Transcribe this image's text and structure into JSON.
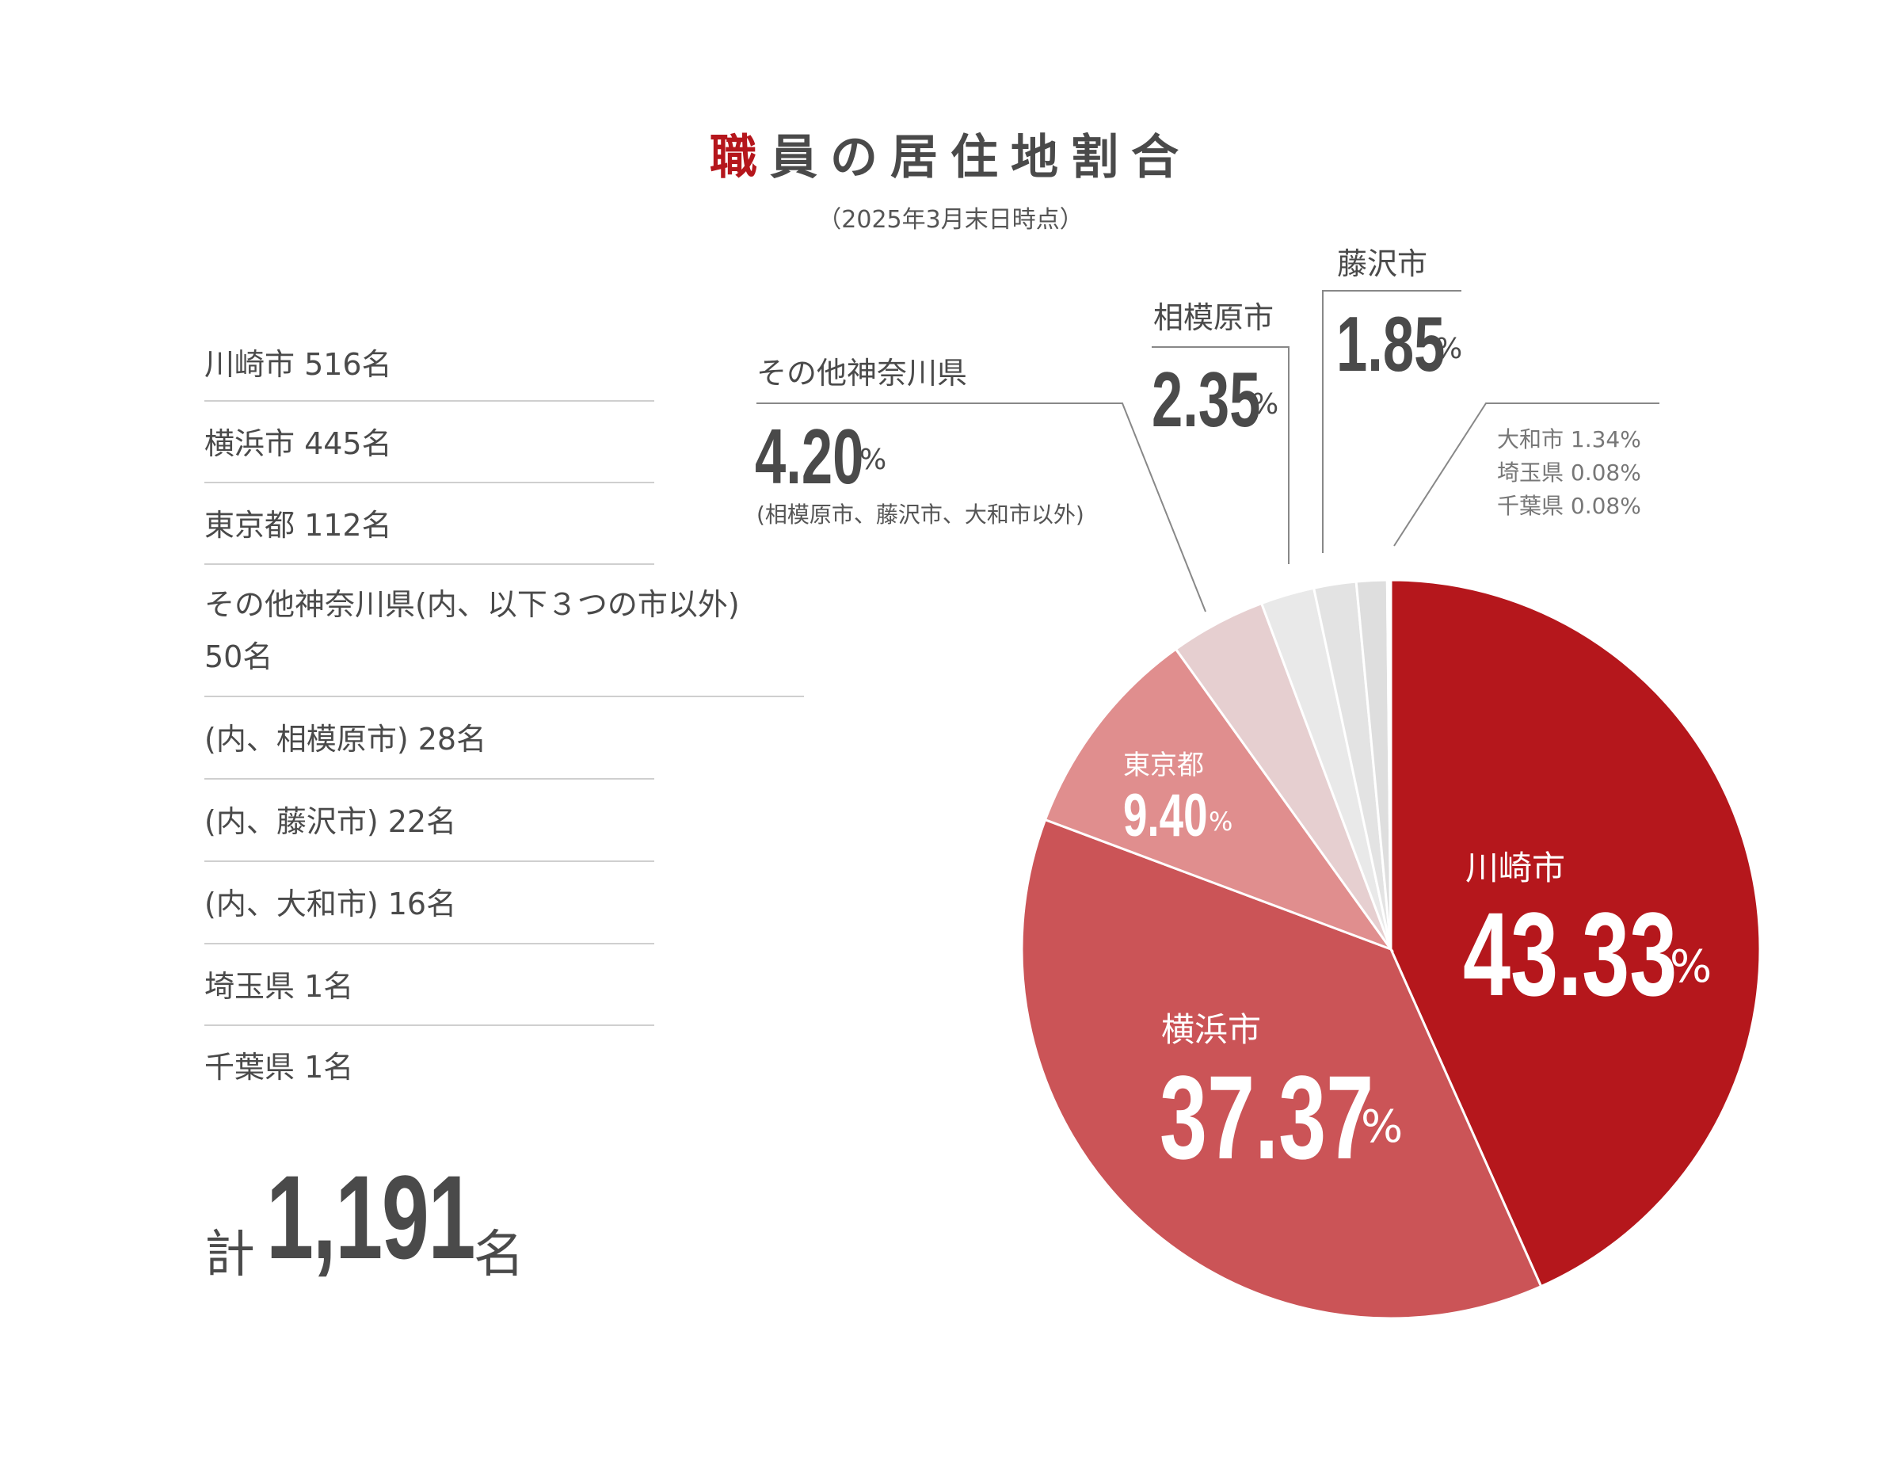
{
  "title": {
    "accent": "職",
    "rest": "員の居住地割合"
  },
  "subtitle": "（2025年3月末日時点）",
  "list": [
    "川崎市 516名",
    "横浜市 445名",
    "東京都 112名",
    "その他神奈川県(内、以下３つの市以外)",
    "50名",
    "(内、相模原市) 28名",
    "(内、藤沢市) 22名",
    "(内、大和市) 16名",
    "埼玉県 1名",
    "千葉県 1名"
  ],
  "total": {
    "prefix": "計",
    "value": "1,191",
    "suffix": "名"
  },
  "chart_data": {
    "type": "pie",
    "title": "職員の居住地割合",
    "slices": [
      {
        "label": "川崎市",
        "value": 43.33,
        "color": "#b5171c"
      },
      {
        "label": "横浜市",
        "value": 37.37,
        "color": "#cb5457"
      },
      {
        "label": "東京都",
        "value": 9.4,
        "color": "#e08e8e"
      },
      {
        "label": "その他神奈川県",
        "value": 4.2,
        "color": "#e6cfd0"
      },
      {
        "label": "相模原市",
        "value": 2.35,
        "color": "#e9e9e9"
      },
      {
        "label": "藤沢市",
        "value": 1.85,
        "color": "#e3e3e3"
      },
      {
        "label": "大和市",
        "value": 1.34,
        "color": "#dedede"
      },
      {
        "label": "埼玉県",
        "value": 0.08,
        "color": "#cfcfcf"
      },
      {
        "label": "千葉県",
        "value": 0.08,
        "color": "#c8c8c8"
      }
    ]
  },
  "labels": {
    "kawasaki": {
      "name": "川崎市",
      "pct": "43.33",
      "unit": "%"
    },
    "yokohama": {
      "name": "横浜市",
      "pct": "37.37",
      "unit": "%"
    },
    "tokyo": {
      "name": "東京都",
      "pct": "9.40",
      "unit": "%"
    },
    "other": {
      "name": "その他神奈川県",
      "pct": "4.20",
      "unit": "%",
      "note": "(相模原市、藤沢市、大和市以外)"
    },
    "sagamihara": {
      "name": "相模原市",
      "pct": "2.35",
      "unit": "%"
    },
    "fujisawa": {
      "name": "藤沢市",
      "pct": "1.85",
      "unit": "%"
    },
    "small": [
      "大和市 1.34%",
      "埼玉県 0.08%",
      "千葉県 0.08%"
    ]
  }
}
